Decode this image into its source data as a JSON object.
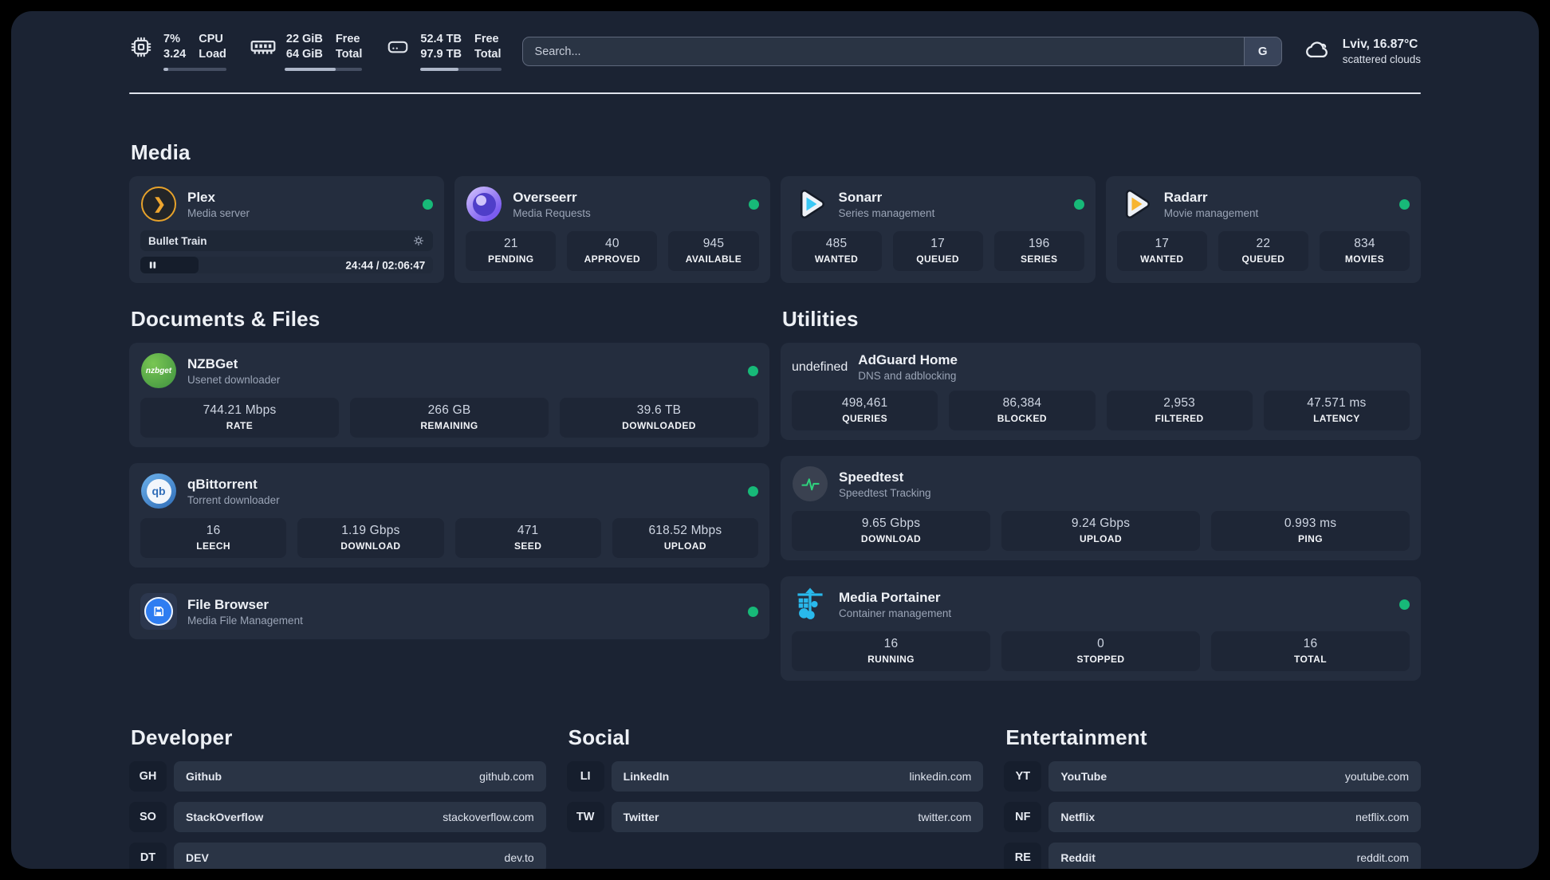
{
  "header": {
    "system_stats": [
      {
        "icon": "cpu",
        "values": [
          "7%",
          "3.24"
        ],
        "labels": [
          "CPU",
          "Load"
        ],
        "progress_pct": 7
      },
      {
        "icon": "memory",
        "values": [
          "22 GiB",
          "64 GiB"
        ],
        "labels": [
          "Free",
          "Total"
        ],
        "progress_pct": 66
      },
      {
        "icon": "disk",
        "values": [
          "52.4 TB",
          "97.9 TB"
        ],
        "labels": [
          "Free",
          "Total"
        ],
        "progress_pct": 47
      }
    ],
    "search": {
      "placeholder": "Search...",
      "engine_button": "G"
    },
    "weather": {
      "icon": "cloud",
      "location": "Lviv, 16.87°C",
      "condition": "scattered clouds"
    }
  },
  "colors": {
    "online_dot": "#17b978"
  },
  "sections": {
    "media": {
      "title": "Media",
      "apps": [
        {
          "name": "Plex",
          "description": "Media server",
          "icon": "plex",
          "online": true,
          "player": {
            "now_playing": "Bullet Train",
            "elapsed": "24:44",
            "duration": "02:06:47",
            "progress_pct": 20
          }
        },
        {
          "name": "Overseerr",
          "description": "Media Requests",
          "icon": "overseerr",
          "online": true,
          "stats": [
            {
              "value": "21",
              "label": "PENDING"
            },
            {
              "value": "40",
              "label": "APPROVED"
            },
            {
              "value": "945",
              "label": "AVAILABLE"
            }
          ]
        },
        {
          "name": "Sonarr",
          "description": "Series management",
          "icon": "sonarr",
          "online": true,
          "stats": [
            {
              "value": "485",
              "label": "WANTED"
            },
            {
              "value": "17",
              "label": "QUEUED"
            },
            {
              "value": "196",
              "label": "SERIES"
            }
          ]
        },
        {
          "name": "Radarr",
          "description": "Movie management",
          "icon": "radarr",
          "online": true,
          "stats": [
            {
              "value": "17",
              "label": "WANTED"
            },
            {
              "value": "22",
              "label": "QUEUED"
            },
            {
              "value": "834",
              "label": "MOVIES"
            }
          ]
        }
      ]
    },
    "documents": {
      "title": "Documents & Files",
      "apps": [
        {
          "name": "NZBGet",
          "description": "Usenet downloader",
          "icon": "nzbget",
          "online": true,
          "stats": [
            {
              "value": "744.21 Mbps",
              "label": "RATE"
            },
            {
              "value": "266 GB",
              "label": "REMAINING"
            },
            {
              "value": "39.6 TB",
              "label": "DOWNLOADED"
            }
          ]
        },
        {
          "name": "qBittorrent",
          "description": "Torrent downloader",
          "icon": "qbittorrent",
          "online": true,
          "stats": [
            {
              "value": "16",
              "label": "LEECH"
            },
            {
              "value": "1.19 Gbps",
              "label": "DOWNLOAD"
            },
            {
              "value": "471",
              "label": "SEED"
            },
            {
              "value": "618.52 Mbps",
              "label": "UPLOAD"
            }
          ]
        },
        {
          "name": "File Browser",
          "description": "Media File Management",
          "icon": "filebrowser",
          "online": true,
          "stats": []
        }
      ]
    },
    "utilities": {
      "title": "Utilities",
      "apps": [
        {
          "name": "AdGuard Home",
          "description": "DNS and adblocking",
          "icon": "adguard",
          "online": false,
          "stats": [
            {
              "value": "498,461",
              "label": "QUERIES"
            },
            {
              "value": "86,384",
              "label": "BLOCKED"
            },
            {
              "value": "2,953",
              "label": "FILTERED"
            },
            {
              "value": "47.571 ms",
              "label": "LATENCY"
            }
          ]
        },
        {
          "name": "Speedtest",
          "description": "Speedtest Tracking",
          "icon": "speedtest",
          "online": false,
          "stats": [
            {
              "value": "9.65 Gbps",
              "label": "DOWNLOAD"
            },
            {
              "value": "9.24 Gbps",
              "label": "UPLOAD"
            },
            {
              "value": "0.993 ms",
              "label": "PING"
            }
          ]
        },
        {
          "name": "Media Portainer",
          "description": "Container management",
          "icon": "portainer",
          "online": true,
          "stats": [
            {
              "value": "16",
              "label": "RUNNING"
            },
            {
              "value": "0",
              "label": "STOPPED"
            },
            {
              "value": "16",
              "label": "TOTAL"
            }
          ]
        }
      ]
    },
    "links": [
      {
        "title": "Developer",
        "items": [
          {
            "abbr": "GH",
            "name": "Github",
            "url": "github.com"
          },
          {
            "abbr": "SO",
            "name": "StackOverflow",
            "url": "stackoverflow.com"
          },
          {
            "abbr": "DT",
            "name": "DEV",
            "url": "dev.to"
          }
        ]
      },
      {
        "title": "Social",
        "items": [
          {
            "abbr": "LI",
            "name": "LinkedIn",
            "url": "linkedin.com"
          },
          {
            "abbr": "TW",
            "name": "Twitter",
            "url": "twitter.com"
          }
        ]
      },
      {
        "title": "Entertainment",
        "items": [
          {
            "abbr": "YT",
            "name": "YouTube",
            "url": "youtube.com"
          },
          {
            "abbr": "NF",
            "name": "Netflix",
            "url": "netflix.com"
          },
          {
            "abbr": "RE",
            "name": "Reddit",
            "url": "reddit.com"
          }
        ]
      }
    ]
  }
}
